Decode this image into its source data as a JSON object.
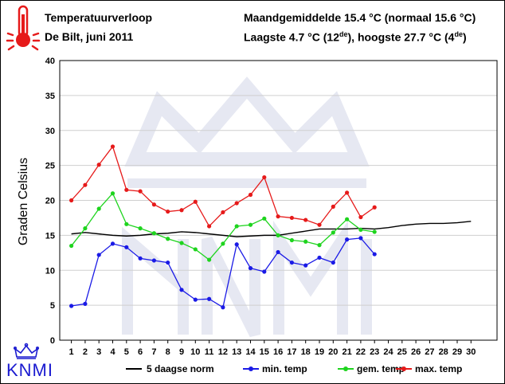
{
  "header": {
    "title": "Temperatuurverloop",
    "location": "De Bilt, juni 2011",
    "avg_line": "Maandgemiddelde 15.4 °C (normaal 15.6 °C)",
    "extremes_pre": "Laagste 4.7 °C (12",
    "extremes_sup1": "de",
    "extremes_mid": "), hoogste 27.7 °C (4",
    "extremes_sup2": "de",
    "extremes_post": ")"
  },
  "logo": {
    "text": "KNMI"
  },
  "icons": {
    "thermometer": "thermometer-icon",
    "crown": "crown-icon"
  },
  "colors": {
    "norm": "#000000",
    "min": "#1a1ae6",
    "gem": "#1ed41e",
    "max": "#e61a1a",
    "grid": "#cfcfcf",
    "logo": "#1a1ad0",
    "thermometer": "#e61a1a",
    "watermark": "#e6e8f2"
  },
  "chart_data": {
    "type": "line",
    "title": "",
    "xlabel": "",
    "ylabel": "Graden Celsius",
    "xlim": [
      1,
      30
    ],
    "ylim": [
      0,
      40
    ],
    "x_ticks": [
      1,
      2,
      3,
      4,
      5,
      6,
      7,
      8,
      9,
      10,
      11,
      12,
      13,
      14,
      15,
      16,
      17,
      18,
      19,
      20,
      21,
      22,
      23,
      24,
      25,
      26,
      27,
      28,
      29,
      30
    ],
    "y_ticks": [
      0,
      5,
      10,
      15,
      20,
      25,
      30,
      35,
      40
    ],
    "grid": true,
    "legend_position": "bottom",
    "series": [
      {
        "name": "5 daagse norm",
        "key": "norm",
        "markers": false,
        "x": [
          1,
          2,
          3,
          4,
          5,
          6,
          7,
          8,
          9,
          10,
          11,
          12,
          13,
          14,
          15,
          16,
          17,
          18,
          19,
          20,
          21,
          22,
          23,
          24,
          25,
          26,
          27,
          28,
          29,
          30
        ],
        "values": [
          15.2,
          15.4,
          15.2,
          15.0,
          14.9,
          15.0,
          15.2,
          15.3,
          15.5,
          15.4,
          15.2,
          15.0,
          14.8,
          14.9,
          15.0,
          15.0,
          15.3,
          15.6,
          15.9,
          15.9,
          15.9,
          16.0,
          15.9,
          16.1,
          16.4,
          16.6,
          16.7,
          16.7,
          16.8,
          17.0
        ]
      },
      {
        "name": "min. temp",
        "key": "min",
        "markers": true,
        "x": [
          1,
          2,
          3,
          4,
          5,
          6,
          7,
          8,
          9,
          10,
          11,
          12,
          13,
          14,
          15,
          16,
          17,
          18,
          19,
          20,
          21,
          22,
          23
        ],
        "values": [
          4.9,
          5.2,
          12.2,
          13.8,
          13.3,
          11.7,
          11.4,
          11.1,
          7.2,
          5.8,
          5.9,
          4.7,
          13.7,
          10.3,
          9.8,
          12.6,
          11.1,
          10.7,
          11.8,
          11.1,
          14.4,
          14.6,
          12.3
        ]
      },
      {
        "name": "gem. temp",
        "key": "gem",
        "markers": true,
        "x": [
          1,
          2,
          3,
          4,
          5,
          6,
          7,
          8,
          9,
          10,
          11,
          12,
          13,
          14,
          15,
          16,
          17,
          18,
          19,
          20,
          21,
          22,
          23
        ],
        "values": [
          13.5,
          16.0,
          18.8,
          21.0,
          16.6,
          16.0,
          15.3,
          14.5,
          13.9,
          13.0,
          11.5,
          13.8,
          16.3,
          16.5,
          17.4,
          15.0,
          14.3,
          14.1,
          13.6,
          15.4,
          17.3,
          15.8,
          15.5
        ]
      },
      {
        "name": "max. temp",
        "key": "max",
        "markers": true,
        "x": [
          1,
          2,
          3,
          4,
          5,
          6,
          7,
          8,
          9,
          10,
          11,
          12,
          13,
          14,
          15,
          16,
          17,
          18,
          19,
          20,
          21,
          22,
          23
        ],
        "values": [
          20.0,
          22.2,
          25.1,
          27.7,
          21.5,
          21.3,
          19.4,
          18.4,
          18.6,
          19.8,
          16.3,
          18.3,
          19.6,
          20.8,
          23.3,
          17.7,
          17.5,
          17.2,
          16.5,
          19.1,
          21.1,
          17.6,
          19.0
        ]
      }
    ]
  }
}
